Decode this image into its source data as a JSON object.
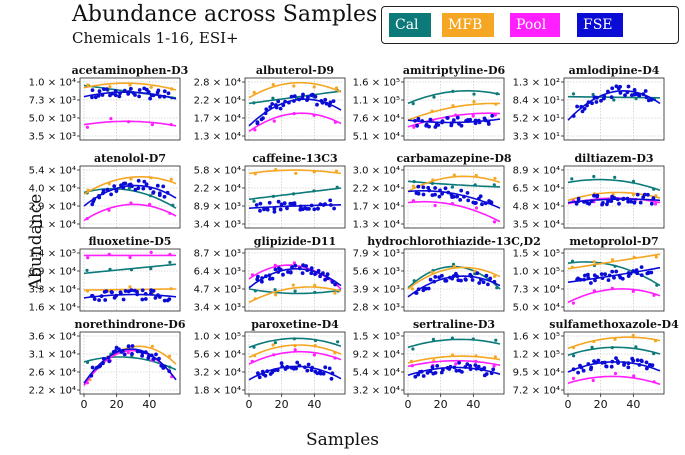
{
  "title": "Abundance across Samples",
  "subtitle": "Chemicals 1-16, ESI+",
  "legend": [
    {
      "label": "Cal",
      "color": "#0d7a7a"
    },
    {
      "label": "MFB",
      "color": "#f5a623"
    },
    {
      "label": "Pool",
      "color": "#ff1fff"
    },
    {
      "label": "FSE",
      "color": "#0b0bd6"
    }
  ],
  "xlabel": "Samples",
  "ylabel": "Abundance",
  "chart_data": [
    {
      "type": "scatter",
      "title": "acetaminophen-D3",
      "yticks": [
        "1.0 × 10⁴",
        "7.3 × 10³",
        "5.0 × 10³",
        "3.5 × 10³"
      ],
      "xticks": [],
      "series": {
        "Cal": [
          [
            0,
            0.92
          ],
          [
            1,
            0.7
          ]
        ],
        "MFB": [
          [
            0,
            0.88
          ],
          [
            0.5,
            0.96
          ],
          [
            1,
            0.84
          ]
        ],
        "Pool": [
          [
            0,
            0.22
          ],
          [
            0.45,
            0.28
          ],
          [
            1,
            0.2
          ]
        ],
        "FSE": [
          [
            0,
            0.72
          ],
          [
            0.5,
            0.8
          ],
          [
            1,
            0.68
          ]
        ]
      }
    },
    {
      "type": "scatter",
      "title": "albuterol-D9",
      "yticks": [
        "2.8 × 10⁴",
        "2.2 × 10⁴",
        "1.7 × 10⁴",
        "1.3 × 10⁴"
      ],
      "xticks": [],
      "series": {
        "Cal": [
          [
            0,
            0.6
          ],
          [
            1,
            0.82
          ]
        ],
        "MFB": [
          [
            0,
            0.7
          ],
          [
            0.45,
            0.96
          ],
          [
            1,
            0.8
          ]
        ],
        "Pool": [
          [
            0,
            0.1
          ],
          [
            0.5,
            0.42
          ],
          [
            1,
            0.24
          ]
        ],
        "FSE": [
          [
            0,
            0.2
          ],
          [
            0.5,
            0.66
          ],
          [
            1,
            0.48
          ]
        ]
      }
    },
    {
      "type": "scatter",
      "title": "amitriptyline-D6",
      "yticks": [
        "1.6 × 10⁵",
        "1.1 × 10⁵",
        "7.6 × 10⁴",
        "5.1 × 10⁴"
      ],
      "xticks": [],
      "series": {
        "Cal": [
          [
            0,
            0.6
          ],
          [
            0.55,
            0.82
          ],
          [
            1,
            0.76
          ]
        ],
        "MFB": [
          [
            0,
            0.3
          ],
          [
            0.6,
            0.56
          ],
          [
            1,
            0.6
          ]
        ],
        "Pool": [
          [
            0,
            0.18
          ],
          [
            0.6,
            0.4
          ],
          [
            1,
            0.42
          ]
        ],
        "FSE": [
          [
            0,
            0.3
          ],
          [
            0.5,
            0.26
          ],
          [
            1,
            0.32
          ]
        ]
      }
    },
    {
      "type": "scatter",
      "title": "amlodipine-D4",
      "yticks": [
        "1.3 × 10²",
        "8.4 × 10¹",
        "5.2 × 10¹",
        "3.3 × 10¹"
      ],
      "xticks": [],
      "series": {
        "Cal": [
          [
            0,
            0.72
          ],
          [
            1,
            0.7
          ]
        ],
        "MFB": [],
        "Pool": [],
        "FSE": [
          [
            0,
            0.3
          ],
          [
            0.55,
            0.82
          ],
          [
            1,
            0.6
          ]
        ]
      }
    },
    {
      "type": "scatter",
      "title": "atenolol-D7",
      "yticks": [
        "5.4 × 10⁴",
        "4.0 × 10⁴",
        "2.9 × 10⁴",
        "2.1 × 10⁴"
      ],
      "xticks": [],
      "series": {
        "Cal": [
          [
            0,
            0.58
          ],
          [
            0.5,
            0.62
          ],
          [
            1,
            0.3
          ]
        ],
        "MFB": [
          [
            0,
            0.55
          ],
          [
            0.5,
            0.85
          ],
          [
            1,
            0.74
          ]
        ],
        "Pool": [
          [
            0,
            0.08
          ],
          [
            0.45,
            0.36
          ],
          [
            1,
            0.16
          ]
        ],
        "FSE": [
          [
            0,
            0.34
          ],
          [
            0.5,
            0.7
          ],
          [
            1,
            0.48
          ]
        ]
      }
    },
    {
      "type": "scatter",
      "title": "caffeine-13C3",
      "yticks": [
        "5.8 × 10⁴",
        "2.2 × 10⁴",
        "8.9 × 10³",
        "3.4 × 10³"
      ],
      "xticks": [],
      "series": {
        "Cal": [
          [
            0,
            0.46
          ],
          [
            1,
            0.66
          ]
        ],
        "MFB": [
          [
            0,
            0.92
          ],
          [
            0.5,
            0.98
          ],
          [
            1,
            0.92
          ]
        ],
        "Pool": [],
        "FSE": [
          [
            0,
            0.3
          ],
          [
            0.5,
            0.34
          ],
          [
            1,
            0.36
          ]
        ]
      }
    },
    {
      "type": "scatter",
      "title": "carbamazepine-D8",
      "yticks": [
        "3.0 × 10⁴",
        "2.2 × 10⁴",
        "1.7 × 10⁴",
        "1.3 × 10⁴"
      ],
      "xticks": [],
      "series": {
        "Cal": [
          [
            0,
            0.78
          ],
          [
            0.5,
            0.72
          ],
          [
            1,
            0.68
          ]
        ],
        "MFB": [
          [
            0,
            0.6
          ],
          [
            0.5,
            0.86
          ],
          [
            1,
            0.76
          ]
        ],
        "Pool": [
          [
            0,
            0.4
          ],
          [
            0.5,
            0.36
          ],
          [
            1,
            0.06
          ]
        ],
        "FSE": [
          [
            0,
            0.6
          ],
          [
            0.5,
            0.56
          ],
          [
            1,
            0.3
          ]
        ]
      }
    },
    {
      "type": "scatter",
      "title": "diltiazem-D3",
      "yticks": [
        "8.9 × 10⁴",
        "6.5 × 10⁴",
        "4.8 × 10⁴",
        "3.5 × 10⁴"
      ],
      "xticks": [],
      "series": {
        "Cal": [
          [
            0,
            0.76
          ],
          [
            0.5,
            0.8
          ],
          [
            1,
            0.62
          ]
        ],
        "MFB": [
          [
            0,
            0.44
          ],
          [
            0.5,
            0.58
          ],
          [
            1,
            0.48
          ]
        ],
        "Pool": [
          [
            0,
            0.38
          ],
          [
            0.5,
            0.48
          ],
          [
            1,
            0.4
          ]
        ],
        "FSE": [
          [
            0,
            0.4
          ],
          [
            0.5,
            0.46
          ],
          [
            1,
            0.44
          ]
        ]
      }
    },
    {
      "type": "scatter",
      "title": "fluoxetine-D5",
      "yticks": [
        "1.4 × 10⁵",
        "6.9 × 10⁴",
        "3.3 × 10⁴",
        "1.6 × 10⁴"
      ],
      "xticks": [],
      "series": {
        "Cal": [
          [
            0,
            0.62
          ],
          [
            1,
            0.78
          ]
        ],
        "MFB": [
          [
            0,
            0.32
          ],
          [
            1,
            0.34
          ]
        ],
        "Pool": [
          [
            0,
            0.94
          ],
          [
            1,
            0.94
          ]
        ],
        "FSE": [
          [
            0,
            0.18
          ],
          [
            0.5,
            0.24
          ],
          [
            1,
            0.2
          ]
        ]
      }
    },
    {
      "type": "scatter",
      "title": "glipizide-D11",
      "yticks": [
        "8.7 × 10³",
        "6.4 × 10³",
        "4.7 × 10³",
        "3.4 × 10³"
      ],
      "xticks": [],
      "series": {
        "Cal": [
          [
            0,
            0.34
          ],
          [
            0.5,
            0.26
          ],
          [
            1,
            0.32
          ]
        ],
        "MFB": [
          [
            0,
            0.1
          ],
          [
            0.5,
            0.36
          ],
          [
            1,
            0.3
          ]
        ],
        "Pool": [
          [
            0,
            0.52
          ],
          [
            0.5,
            0.76
          ],
          [
            1,
            0.34
          ]
        ],
        "FSE": [
          [
            0,
            0.36
          ],
          [
            0.5,
            0.7
          ],
          [
            1,
            0.4
          ]
        ]
      }
    },
    {
      "type": "scatter",
      "title": "hydrochlorothiazide-13C,D2",
      "yticks": [
        "7.9 × 10³",
        "5.6 × 10³",
        "3.9 × 10³",
        "2.8 × 10³"
      ],
      "xticks": [],
      "series": {
        "Cal": [
          [
            0,
            0.36
          ],
          [
            0.5,
            0.74
          ],
          [
            1,
            0.34
          ]
        ],
        "MFB": [
          [
            0,
            0.34
          ],
          [
            0.55,
            0.72
          ],
          [
            1,
            0.56
          ]
        ],
        "Pool": [],
        "FSE": [
          [
            0,
            0.2
          ],
          [
            0.5,
            0.56
          ],
          [
            1,
            0.4
          ]
        ]
      }
    },
    {
      "type": "scatter",
      "title": "metoprolol-D7",
      "yticks": [
        "1.5 × 10⁵",
        "1.0 × 10⁵",
        "7.3 × 10⁴",
        "5.0 × 10⁴"
      ],
      "xticks": [],
      "series": {
        "Cal": [
          [
            0,
            0.8
          ],
          [
            0.5,
            0.76
          ],
          [
            1,
            0.4
          ]
        ],
        "MFB": [
          [
            0,
            0.7
          ],
          [
            1,
            0.96
          ]
        ],
        "Pool": [
          [
            0,
            0.1
          ],
          [
            0.55,
            0.34
          ],
          [
            1,
            0.22
          ]
        ],
        "FSE": [
          [
            0,
            0.46
          ],
          [
            0.5,
            0.58
          ],
          [
            1,
            0.72
          ]
        ]
      }
    },
    {
      "type": "scatter",
      "title": "norethindrone-D6",
      "yticks": [
        "3.6 × 10⁴",
        "3.1 × 10⁴",
        "2.6 × 10⁴",
        "2.2 × 10⁴"
      ],
      "xticks": [
        "0",
        "20",
        "40"
      ],
      "series": {
        "Cal": [
          [
            0,
            0.52
          ],
          [
            0.5,
            0.6
          ],
          [
            1,
            0.38
          ]
        ],
        "MFB": [
          [
            0,
            0.1
          ],
          [
            0.5,
            0.78
          ],
          [
            1,
            0.48
          ]
        ],
        "Pool": [
          [
            0,
            0.1
          ],
          [
            0.5,
            0.72
          ],
          [
            1,
            0.2
          ]
        ],
        "FSE": [
          [
            0,
            0.14
          ],
          [
            0.45,
            0.74
          ],
          [
            1,
            0.2
          ]
        ]
      }
    },
    {
      "type": "scatter",
      "title": "paroxetine-D4",
      "yticks": [
        "1.0 × 10⁵",
        "5.6 × 10⁴",
        "3.2 × 10⁴",
        "1.8 × 10⁴"
      ],
      "xticks": [
        "0",
        "20",
        "40"
      ],
      "series": {
        "Cal": [
          [
            0,
            0.78
          ],
          [
            0.5,
            0.94
          ],
          [
            1,
            0.8
          ]
        ],
        "MFB": [
          [
            0,
            0.6
          ],
          [
            0.5,
            0.82
          ],
          [
            1,
            0.66
          ]
        ],
        "Pool": [
          [
            0,
            0.48
          ],
          [
            0.5,
            0.7
          ],
          [
            1,
            0.56
          ]
        ],
        "FSE": [
          [
            0,
            0.2
          ],
          [
            0.5,
            0.44
          ],
          [
            1,
            0.22
          ]
        ]
      }
    },
    {
      "type": "scatter",
      "title": "sertraline-D3",
      "yticks": [
        "1.5 × 10⁵",
        "9.2 × 10⁴",
        "5.4 × 10⁴",
        "3.2 × 10⁴"
      ],
      "xticks": [
        "0",
        "20",
        "40"
      ],
      "series": {
        "Cal": [
          [
            0,
            0.78
          ],
          [
            0.5,
            0.92
          ],
          [
            1,
            0.84
          ]
        ],
        "MFB": [
          [
            0,
            0.5
          ],
          [
            0.5,
            0.62
          ],
          [
            1,
            0.56
          ]
        ],
        "Pool": [
          [
            0,
            0.44
          ],
          [
            0.5,
            0.54
          ],
          [
            1,
            0.46
          ]
        ],
        "FSE": [
          [
            0,
            0.28
          ],
          [
            0.5,
            0.42
          ],
          [
            1,
            0.3
          ]
        ]
      }
    },
    {
      "type": "scatter",
      "title": "sulfamethoxazole-D4",
      "yticks": [
        "1.6 × 10⁵",
        "1.2 × 10⁵",
        "9.5 × 10⁴",
        "7.2 × 10⁴"
      ],
      "xticks": [
        "0",
        "20",
        "40"
      ],
      "series": {
        "Cal": [
          [
            0,
            0.64
          ],
          [
            0.5,
            0.78
          ],
          [
            1,
            0.66
          ]
        ],
        "MFB": [
          [
            0,
            0.76
          ],
          [
            0.6,
            0.96
          ],
          [
            1,
            0.9
          ]
        ],
        "Pool": [
          [
            0,
            0.14
          ],
          [
            0.5,
            0.26
          ],
          [
            1,
            0.12
          ]
        ],
        "FSE": [
          [
            0,
            0.34
          ],
          [
            0.5,
            0.52
          ],
          [
            1,
            0.36
          ]
        ]
      }
    }
  ]
}
